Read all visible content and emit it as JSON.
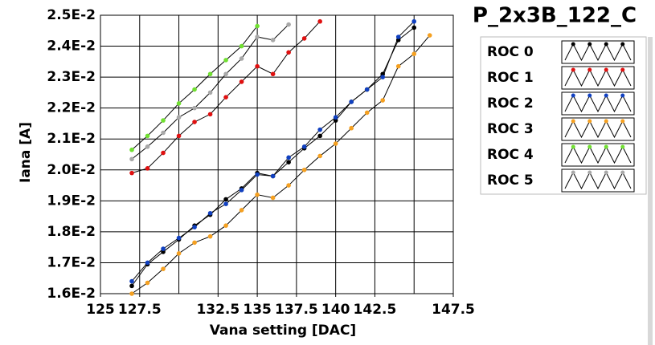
{
  "chart_data": {
    "type": "line",
    "title": "P_2x3B_122_C",
    "xlabel": "Vana setting [DAC]",
    "ylabel": "Iana [A]",
    "xlim": [
      125,
      147.5
    ],
    "xticks": [
      125,
      127.5,
      132.5,
      135,
      137.5,
      140,
      142.5,
      147.5
    ],
    "xgrid": [
      125,
      127.5,
      130,
      132.5,
      135,
      137.5,
      140,
      142.5,
      145,
      147.5
    ],
    "ylim": [
      0.016,
      0.025
    ],
    "yticks": [
      {
        "value": 0.016,
        "label": "1.6E-2"
      },
      {
        "value": 0.017,
        "label": "1.7E-2"
      },
      {
        "value": 0.018,
        "label": "1.8E-2"
      },
      {
        "value": 0.019,
        "label": "1.9E-2"
      },
      {
        "value": 0.02,
        "label": "2.0E-2"
      },
      {
        "value": 0.021,
        "label": "2.1E-2"
      },
      {
        "value": 0.022,
        "label": "2.2E-2"
      },
      {
        "value": 0.023,
        "label": "2.3E-2"
      },
      {
        "value": 0.024,
        "label": "2.4E-2"
      },
      {
        "value": 0.025,
        "label": "2.5E-2"
      }
    ],
    "grid": true,
    "line_color": "#000000",
    "series": [
      {
        "name": "ROC 0",
        "color": "#000000",
        "x": [
          127,
          128,
          129,
          130,
          131,
          132,
          133,
          134,
          135,
          136,
          137,
          138,
          139,
          140,
          141,
          142,
          143,
          144,
          145
        ],
        "values": [
          0.01625,
          0.01695,
          0.01735,
          0.01775,
          0.0182,
          0.01855,
          0.01905,
          0.0194,
          0.0199,
          0.0198,
          0.02025,
          0.0207,
          0.0211,
          0.0216,
          0.0222,
          0.0226,
          0.0231,
          0.0242,
          0.0246
        ]
      },
      {
        "name": "ROC 1",
        "color": "#e01010",
        "x": [
          127,
          128,
          129,
          130,
          131,
          132,
          133,
          134,
          135,
          136,
          137,
          138,
          139
        ],
        "values": [
          0.0199,
          0.02005,
          0.02055,
          0.0211,
          0.02155,
          0.0218,
          0.02235,
          0.02285,
          0.02335,
          0.0231,
          0.0238,
          0.02425,
          0.0248
        ]
      },
      {
        "name": "ROC 2",
        "color": "#1040c0",
        "x": [
          127,
          128,
          129,
          130,
          131,
          132,
          133,
          134,
          135,
          136,
          137,
          138,
          139,
          140,
          141,
          142,
          143,
          144,
          145
        ],
        "values": [
          0.0164,
          0.017,
          0.01745,
          0.0178,
          0.01815,
          0.0186,
          0.0189,
          0.01935,
          0.01985,
          0.0198,
          0.0204,
          0.02075,
          0.0213,
          0.0217,
          0.0222,
          0.0226,
          0.023,
          0.0243,
          0.0248
        ]
      },
      {
        "name": "ROC 3",
        "color": "#f5a020",
        "x": [
          127,
          128,
          129,
          130,
          131,
          132,
          133,
          134,
          135,
          136,
          137,
          138,
          139,
          140,
          141,
          142,
          143,
          144,
          145,
          146
        ],
        "values": [
          0.016,
          0.01635,
          0.0168,
          0.0173,
          0.01765,
          0.01785,
          0.0182,
          0.0187,
          0.0192,
          0.0191,
          0.0195,
          0.02,
          0.02045,
          0.02085,
          0.02135,
          0.02185,
          0.02225,
          0.02335,
          0.02375,
          0.02435
        ]
      },
      {
        "name": "ROC 4",
        "color": "#70e030",
        "x": [
          127,
          128,
          129,
          130,
          131,
          132,
          133,
          134,
          135
        ],
        "values": [
          0.02065,
          0.0211,
          0.0216,
          0.02215,
          0.0226,
          0.0231,
          0.02355,
          0.024,
          0.02465
        ]
      },
      {
        "name": "ROC 5",
        "color": "#a8a8a8",
        "x": [
          127,
          128,
          129,
          130,
          131,
          132,
          133,
          134,
          135,
          136,
          137
        ],
        "values": [
          0.02035,
          0.02075,
          0.0212,
          0.0217,
          0.022,
          0.0225,
          0.0231,
          0.0236,
          0.0243,
          0.0242,
          0.0247
        ]
      }
    ]
  }
}
